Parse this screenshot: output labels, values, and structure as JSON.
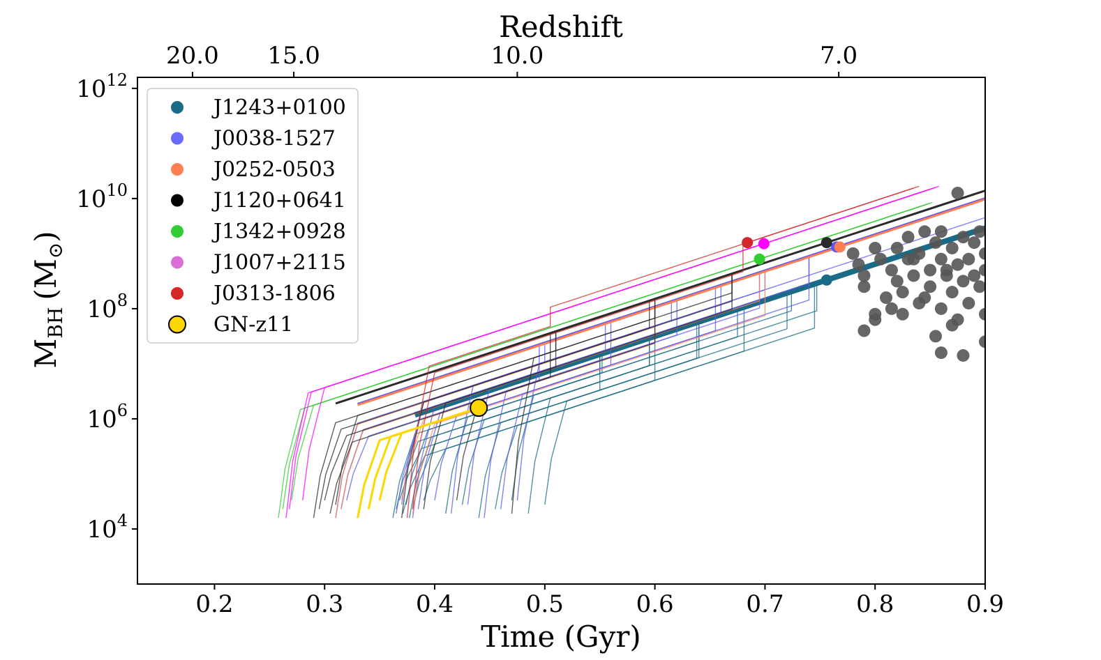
{
  "chart_data": {
    "type": "line",
    "xlabel": "Time (Gyr)",
    "ylabel_main": "M",
    "ylabel_sub": "BH",
    "ylabel_units": "(M",
    "ylabel_units_sub": "⊙",
    "ylabel_close": ")",
    "top_xlabel": "Redshift",
    "xlim": [
      0.13,
      0.9
    ],
    "ylim_log10": [
      3.0,
      12.2
    ],
    "x_ticks": [
      {
        "value": 0.2,
        "label": "0.2"
      },
      {
        "value": 0.3,
        "label": "0.3"
      },
      {
        "value": 0.4,
        "label": "0.4"
      },
      {
        "value": 0.5,
        "label": "0.5"
      },
      {
        "value": 0.6,
        "label": "0.6"
      },
      {
        "value": 0.7,
        "label": "0.7"
      },
      {
        "value": 0.8,
        "label": "0.8"
      },
      {
        "value": 0.9,
        "label": "0.9"
      }
    ],
    "top_ticks": [
      {
        "time": 0.18,
        "label": "20.0"
      },
      {
        "time": 0.272,
        "label": "15.0"
      },
      {
        "time": 0.475,
        "label": "10.0"
      },
      {
        "time": 0.767,
        "label": "7.0"
      }
    ],
    "y_ticks": [
      {
        "log": 4,
        "base": "10",
        "exp": "4"
      },
      {
        "log": 6,
        "base": "10",
        "exp": "6"
      },
      {
        "log": 8,
        "base": "10",
        "exp": "8"
      },
      {
        "log": 10,
        "base": "10",
        "exp": "10"
      },
      {
        "log": 12,
        "base": "10",
        "exp": "12"
      }
    ],
    "legend": [
      {
        "label": "J1243+0100",
        "color": "#1a6b85",
        "marker": "dot"
      },
      {
        "label": "J0038-1527",
        "color": "#6a6aff",
        "marker": "dot"
      },
      {
        "label": "J0252-0503",
        "color": "#ff7f50",
        "marker": "dot"
      },
      {
        "label": "J1120+0641",
        "color": "#000000",
        "marker": "dot"
      },
      {
        "label": "J1342+0928",
        "color": "#33cc33",
        "marker": "dot"
      },
      {
        "label": "J1007+2115",
        "color": "#da70d6",
        "marker": "dot"
      },
      {
        "label": "J0313-1806",
        "color": "#d62728",
        "marker": "dot"
      },
      {
        "label": "GN-z11",
        "color": "#ffd700",
        "marker": "big"
      }
    ],
    "series": [
      {
        "name": "J1243+0100",
        "color": "#1a6b85",
        "final": {
          "t": 0.756,
          "logM": 8.52
        },
        "seeds": [
          0.362,
          0.365,
          0.368,
          0.371,
          0.374,
          0.377,
          0.38,
          0.39,
          0.41,
          0.425,
          0.44,
          0.455,
          0.47,
          0.485,
          0.5
        ],
        "jumps": [
          0.55,
          0.6,
          0.64,
          0.68,
          0.72,
          0.75
        ]
      },
      {
        "name": "J0038-1527",
        "color": "#5a5af0",
        "final": {
          "t": 0.765,
          "logM": 9.12
        },
        "seeds": [
          0.31,
          0.315,
          0.32,
          0.365,
          0.37,
          0.38,
          0.385,
          0.4,
          0.415,
          0.43,
          0.445,
          0.46,
          0.475
        ],
        "jumps": [
          0.5,
          0.56,
          0.62,
          0.66,
          0.7,
          0.74
        ]
      },
      {
        "name": "J0252-0503",
        "color": "#ff7f50",
        "final": {
          "t": 0.768,
          "logM": 9.12
        },
        "seeds": [
          0.31,
          0.315,
          0.37,
          0.38
        ],
        "jumps": [
          0.6,
          0.7
        ]
      },
      {
        "name": "J1120+0641",
        "color": "#2a2a2a",
        "final": {
          "t": 0.756,
          "logM": 9.2
        },
        "seeds": [
          0.29,
          0.295,
          0.3,
          0.305,
          0.31,
          0.37,
          0.39,
          0.42,
          0.47
        ],
        "jumps": [
          0.51,
          0.6,
          0.67
        ]
      },
      {
        "name": "J1342+0928",
        "color": "#33cc33",
        "final": {
          "t": 0.695,
          "logM": 8.9
        },
        "seeds": [
          0.258,
          0.262,
          0.27
        ],
        "jumps": []
      },
      {
        "name": "J1007+2115",
        "color": "#ff00ff",
        "final": {
          "t": 0.699,
          "logM": 9.18
        },
        "seeds": [
          0.265,
          0.268,
          0.28
        ],
        "jumps": []
      },
      {
        "name": "J0313-1806",
        "color": "#d62728",
        "final": {
          "t": 0.684,
          "logM": 9.2
        },
        "seeds": [
          0.375,
          0.38
        ],
        "jumps": [
          0.51,
          0.68
        ]
      },
      {
        "name": "GN-z11",
        "color": "#ffd700",
        "final": {
          "t": 0.44,
          "logM": 6.2
        },
        "seeds": [
          0.33,
          0.34,
          0.35
        ],
        "jumps": []
      }
    ],
    "observed_quasars": {
      "color": "#555555",
      "points": [
        [
          0.78,
          9.0
        ],
        [
          0.785,
          8.8
        ],
        [
          0.79,
          8.6
        ],
        [
          0.79,
          8.4
        ],
        [
          0.8,
          9.1
        ],
        [
          0.805,
          8.9
        ],
        [
          0.81,
          8.2
        ],
        [
          0.8,
          7.9
        ],
        [
          0.8,
          7.8
        ],
        [
          0.815,
          8.7
        ],
        [
          0.82,
          9.1
        ],
        [
          0.82,
          8.5
        ],
        [
          0.825,
          8.3
        ],
        [
          0.83,
          9.3
        ],
        [
          0.83,
          8.9
        ],
        [
          0.835,
          8.6
        ],
        [
          0.84,
          9.0
        ],
        [
          0.84,
          8.1
        ],
        [
          0.845,
          9.4
        ],
        [
          0.85,
          8.7
        ],
        [
          0.85,
          8.4
        ],
        [
          0.855,
          9.2
        ],
        [
          0.86,
          8.9
        ],
        [
          0.86,
          8.0
        ],
        [
          0.865,
          8.6
        ],
        [
          0.87,
          9.1
        ],
        [
          0.87,
          8.3
        ],
        [
          0.875,
          8.8
        ],
        [
          0.875,
          7.8
        ],
        [
          0.88,
          9.3
        ],
        [
          0.88,
          8.5
        ],
        [
          0.885,
          8.9
        ],
        [
          0.885,
          8.1
        ],
        [
          0.89,
          9.2
        ],
        [
          0.89,
          8.6
        ],
        [
          0.895,
          8.4
        ],
        [
          0.9,
          9.0
        ],
        [
          0.9,
          8.7
        ],
        [
          0.9,
          7.9
        ],
        [
          0.86,
          7.2
        ],
        [
          0.88,
          7.15
        ],
        [
          0.9,
          7.4
        ],
        [
          0.895,
          9.4
        ],
        [
          0.875,
          10.1
        ],
        [
          0.86,
          9.4
        ],
        [
          0.845,
          8.2
        ],
        [
          0.835,
          8.9
        ],
        [
          0.815,
          8.0
        ],
        [
          0.865,
          8.7
        ],
        [
          0.855,
          7.5
        ],
        [
          0.87,
          7.7
        ],
        [
          0.79,
          7.6
        ],
        [
          0.825,
          7.9
        ]
      ]
    }
  }
}
